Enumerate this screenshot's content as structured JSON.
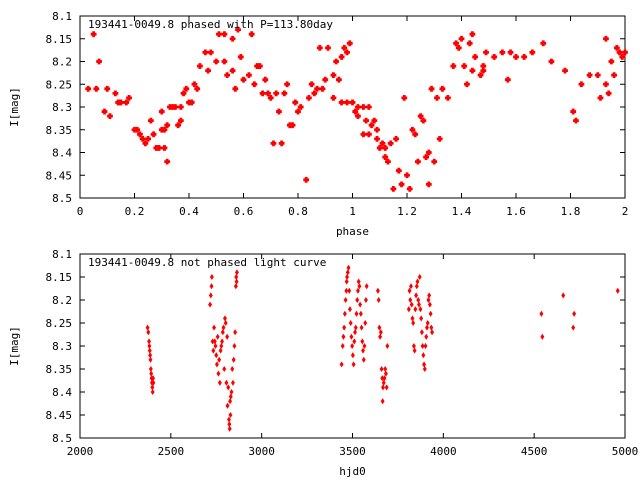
{
  "chart_data": [
    {
      "type": "scatter",
      "title": "193441-0049.8 phased with P=113.80day",
      "xlabel": "phase",
      "ylabel": "I[mag]",
      "xlim": [
        0,
        2
      ],
      "ylim": [
        8.1,
        8.5
      ],
      "y_inverted": true,
      "x_ticks": [
        "0",
        "0.2",
        "0.4",
        "0.6",
        "0.8",
        "1",
        "1.2",
        "1.4",
        "1.6",
        "1.8",
        "2"
      ],
      "y_ticks": [
        "8.1",
        "8.15",
        "8.2",
        "8.25",
        "8.3",
        "8.35",
        "8.4",
        "8.45",
        "8.5"
      ],
      "marker_color": "#ff0000",
      "points": [
        [
          0.03,
          8.26
        ],
        [
          0.05,
          8.14
        ],
        [
          0.06,
          8.26
        ],
        [
          0.07,
          8.2
        ],
        [
          0.09,
          8.31
        ],
        [
          0.1,
          8.26
        ],
        [
          0.11,
          8.32
        ],
        [
          0.13,
          8.27
        ],
        [
          0.14,
          8.29
        ],
        [
          0.15,
          8.29
        ],
        [
          0.17,
          8.29
        ],
        [
          0.18,
          8.28
        ],
        [
          0.2,
          8.35
        ],
        [
          0.21,
          8.35
        ],
        [
          0.22,
          8.36
        ],
        [
          0.23,
          8.37
        ],
        [
          0.24,
          8.38
        ],
        [
          0.25,
          8.37
        ],
        [
          0.26,
          8.33
        ],
        [
          0.27,
          8.36
        ],
        [
          0.28,
          8.39
        ],
        [
          0.29,
          8.39
        ],
        [
          0.3,
          8.35
        ],
        [
          0.3,
          8.31
        ],
        [
          0.31,
          8.39
        ],
        [
          0.31,
          8.35
        ],
        [
          0.32,
          8.34
        ],
        [
          0.32,
          8.42
        ],
        [
          0.33,
          8.3
        ],
        [
          0.34,
          8.3
        ],
        [
          0.35,
          8.3
        ],
        [
          0.36,
          8.34
        ],
        [
          0.37,
          8.3
        ],
        [
          0.37,
          8.33
        ],
        [
          0.38,
          8.27
        ],
        [
          0.39,
          8.26
        ],
        [
          0.4,
          8.29
        ],
        [
          0.41,
          8.29
        ],
        [
          0.42,
          8.25
        ],
        [
          0.43,
          8.26
        ],
        [
          0.44,
          8.21
        ],
        [
          0.46,
          8.18
        ],
        [
          0.47,
          8.22
        ],
        [
          0.48,
          8.18
        ],
        [
          0.5,
          8.2
        ],
        [
          0.51,
          8.14
        ],
        [
          0.53,
          8.14
        ],
        [
          0.53,
          8.2
        ],
        [
          0.54,
          8.23
        ],
        [
          0.56,
          8.15
        ],
        [
          0.56,
          8.22
        ],
        [
          0.57,
          8.26
        ],
        [
          0.58,
          8.13
        ],
        [
          0.59,
          8.19
        ],
        [
          0.6,
          8.24
        ],
        [
          0.62,
          8.23
        ],
        [
          0.63,
          8.14
        ],
        [
          0.64,
          8.25
        ],
        [
          0.65,
          8.21
        ],
        [
          0.66,
          8.21
        ],
        [
          0.67,
          8.27
        ],
        [
          0.68,
          8.24
        ],
        [
          0.69,
          8.27
        ],
        [
          0.7,
          8.28
        ],
        [
          0.71,
          8.38
        ],
        [
          0.72,
          8.27
        ],
        [
          0.73,
          8.31
        ],
        [
          0.74,
          8.38
        ],
        [
          0.75,
          8.27
        ],
        [
          0.76,
          8.25
        ],
        [
          0.77,
          8.34
        ],
        [
          0.78,
          8.34
        ],
        [
          0.79,
          8.29
        ],
        [
          0.8,
          8.31
        ],
        [
          0.81,
          8.3
        ],
        [
          0.83,
          8.46
        ],
        [
          0.84,
          8.28
        ],
        [
          0.85,
          8.25
        ],
        [
          0.86,
          8.27
        ],
        [
          0.87,
          8.26
        ],
        [
          0.88,
          8.17
        ],
        [
          0.89,
          8.26
        ],
        [
          0.9,
          8.24
        ],
        [
          0.91,
          8.17
        ],
        [
          0.93,
          8.28
        ],
        [
          0.93,
          8.23
        ],
        [
          0.94,
          8.2
        ],
        [
          0.95,
          8.24
        ],
        [
          0.96,
          8.19
        ],
        [
          0.96,
          8.29
        ],
        [
          0.97,
          8.17
        ],
        [
          0.98,
          8.29
        ],
        [
          0.98,
          8.18
        ],
        [
          0.99,
          8.16
        ],
        [
          1.0,
          8.29
        ],
        [
          1.01,
          8.31
        ],
        [
          1.02,
          8.32
        ],
        [
          1.02,
          8.3
        ],
        [
          1.04,
          8.3
        ],
        [
          1.04,
          8.36
        ],
        [
          1.05,
          8.33
        ],
        [
          1.06,
          8.3
        ],
        [
          1.06,
          8.36
        ],
        [
          1.07,
          8.34
        ],
        [
          1.08,
          8.33
        ],
        [
          1.09,
          8.35
        ],
        [
          1.09,
          8.37
        ],
        [
          1.1,
          8.39
        ],
        [
          1.11,
          8.38
        ],
        [
          1.12,
          8.39
        ],
        [
          1.12,
          8.41
        ],
        [
          1.13,
          8.42
        ],
        [
          1.14,
          8.38
        ],
        [
          1.15,
          8.48
        ],
        [
          1.16,
          8.37
        ],
        [
          1.17,
          8.44
        ],
        [
          1.18,
          8.47
        ],
        [
          1.19,
          8.28
        ],
        [
          1.2,
          8.45
        ],
        [
          1.21,
          8.48
        ],
        [
          1.22,
          8.35
        ],
        [
          1.23,
          8.36
        ],
        [
          1.24,
          8.42
        ],
        [
          1.25,
          8.32
        ],
        [
          1.26,
          8.33
        ],
        [
          1.27,
          8.41
        ],
        [
          1.28,
          8.4
        ],
        [
          1.28,
          8.47
        ],
        [
          1.29,
          8.26
        ],
        [
          1.3,
          8.42
        ],
        [
          1.31,
          8.28
        ],
        [
          1.32,
          8.37
        ],
        [
          1.33,
          8.26
        ],
        [
          1.35,
          8.28
        ],
        [
          1.37,
          8.21
        ],
        [
          1.38,
          8.16
        ],
        [
          1.39,
          8.17
        ],
        [
          1.4,
          8.15
        ],
        [
          1.41,
          8.21
        ],
        [
          1.42,
          8.25
        ],
        [
          1.43,
          8.16
        ],
        [
          1.44,
          8.14
        ],
        [
          1.44,
          8.22
        ],
        [
          1.45,
          8.19
        ],
        [
          1.47,
          8.23
        ],
        [
          1.48,
          8.22
        ],
        [
          1.48,
          8.21
        ],
        [
          1.49,
          8.18
        ],
        [
          1.52,
          8.19
        ],
        [
          1.55,
          8.18
        ],
        [
          1.57,
          8.24
        ],
        [
          1.58,
          8.18
        ],
        [
          1.6,
          8.19
        ],
        [
          1.63,
          8.19
        ],
        [
          1.66,
          8.18
        ],
        [
          1.7,
          8.16
        ],
        [
          1.73,
          8.2
        ],
        [
          1.78,
          8.22
        ],
        [
          1.81,
          8.31
        ],
        [
          1.82,
          8.33
        ],
        [
          1.84,
          8.25
        ],
        [
          1.87,
          8.23
        ],
        [
          1.9,
          8.23
        ],
        [
          1.91,
          8.28
        ],
        [
          1.93,
          8.15
        ],
        [
          1.93,
          8.25
        ],
        [
          1.94,
          8.27
        ],
        [
          1.95,
          8.2
        ],
        [
          1.96,
          8.23
        ],
        [
          1.97,
          8.17
        ],
        [
          1.98,
          8.18
        ],
        [
          1.99,
          8.19
        ],
        [
          2.0,
          8.18
        ]
      ]
    },
    {
      "type": "scatter",
      "title": "193441-0049.8 not phased light curve",
      "xlabel": "hjd0",
      "ylabel": "I[mag]",
      "xlim": [
        2000,
        5000
      ],
      "ylim": [
        8.1,
        8.5
      ],
      "y_inverted": true,
      "x_ticks": [
        "2000",
        "2500",
        "3000",
        "3500",
        "4000",
        "4500",
        "5000"
      ],
      "y_ticks": [
        "8.1",
        "8.15",
        "8.2",
        "8.25",
        "8.3",
        "8.35",
        "8.4",
        "8.45",
        "8.5"
      ],
      "marker_color": "#ff0000",
      "points": [
        [
          2372,
          8.26
        ],
        [
          2376,
          8.27
        ],
        [
          2380,
          8.29
        ],
        [
          2382,
          8.3
        ],
        [
          2384,
          8.31
        ],
        [
          2386,
          8.32
        ],
        [
          2388,
          8.33
        ],
        [
          2390,
          8.35
        ],
        [
          2392,
          8.36
        ],
        [
          2394,
          8.37
        ],
        [
          2396,
          8.38
        ],
        [
          2398,
          8.39
        ],
        [
          2400,
          8.4
        ],
        [
          2402,
          8.37
        ],
        [
          2404,
          8.38
        ],
        [
          2716,
          8.21
        ],
        [
          2720,
          8.19
        ],
        [
          2724,
          8.17
        ],
        [
          2726,
          8.15
        ],
        [
          2730,
          8.29
        ],
        [
          2734,
          8.31
        ],
        [
          2738,
          8.26
        ],
        [
          2742,
          8.29
        ],
        [
          2746,
          8.3
        ],
        [
          2750,
          8.32
        ],
        [
          2754,
          8.34
        ],
        [
          2758,
          8.28
        ],
        [
          2762,
          8.36
        ],
        [
          2766,
          8.33
        ],
        [
          2770,
          8.38
        ],
        [
          2774,
          8.31
        ],
        [
          2778,
          8.3
        ],
        [
          2782,
          8.29
        ],
        [
          2786,
          8.27
        ],
        [
          2790,
          8.26
        ],
        [
          2794,
          8.35
        ],
        [
          2798,
          8.24
        ],
        [
          2802,
          8.25
        ],
        [
          2806,
          8.38
        ],
        [
          2810,
          8.28
        ],
        [
          2812,
          8.43
        ],
        [
          2816,
          8.39
        ],
        [
          2820,
          8.46
        ],
        [
          2822,
          8.47
        ],
        [
          2824,
          8.48
        ],
        [
          2826,
          8.42
        ],
        [
          2828,
          8.45
        ],
        [
          2830,
          8.41
        ],
        [
          2834,
          8.4
        ],
        [
          2838,
          8.35
        ],
        [
          2842,
          8.38
        ],
        [
          2846,
          8.33
        ],
        [
          2850,
          8.3
        ],
        [
          2854,
          8.27
        ],
        [
          2858,
          8.17
        ],
        [
          2860,
          8.15
        ],
        [
          2862,
          8.16
        ],
        [
          2864,
          8.14
        ],
        [
          3440,
          8.34
        ],
        [
          3446,
          8.3
        ],
        [
          3450,
          8.28
        ],
        [
          3454,
          8.26
        ],
        [
          3458,
          8.23
        ],
        [
          3462,
          8.2
        ],
        [
          3466,
          8.18
        ],
        [
          3468,
          8.16
        ],
        [
          3470,
          8.15
        ],
        [
          3474,
          8.14
        ],
        [
          3478,
          8.13
        ],
        [
          3482,
          8.18
        ],
        [
          3486,
          8.22
        ],
        [
          3490,
          8.25
        ],
        [
          3494,
          8.28
        ],
        [
          3498,
          8.3
        ],
        [
          3502,
          8.32
        ],
        [
          3506,
          8.34
        ],
        [
          3510,
          8.29
        ],
        [
          3514,
          8.27
        ],
        [
          3518,
          8.26
        ],
        [
          3522,
          8.23
        ],
        [
          3526,
          8.2
        ],
        [
          3530,
          8.18
        ],
        [
          3534,
          8.16
        ],
        [
          3538,
          8.17
        ],
        [
          3542,
          8.21
        ],
        [
          3546,
          8.23
        ],
        [
          3550,
          8.26
        ],
        [
          3554,
          8.29
        ],
        [
          3558,
          8.31
        ],
        [
          3562,
          8.33
        ],
        [
          3566,
          8.3
        ],
        [
          3570,
          8.25
        ],
        [
          3574,
          8.2
        ],
        [
          3578,
          8.17
        ],
        [
          3640,
          8.18
        ],
        [
          3644,
          8.2
        ],
        [
          3648,
          8.26
        ],
        [
          3652,
          8.28
        ],
        [
          3656,
          8.27
        ],
        [
          3660,
          8.35
        ],
        [
          3664,
          8.37
        ],
        [
          3666,
          8.42
        ],
        [
          3668,
          8.39
        ],
        [
          3672,
          8.38
        ],
        [
          3676,
          8.37
        ],
        [
          3680,
          8.35
        ],
        [
          3684,
          8.36
        ],
        [
          3688,
          8.39
        ],
        [
          3692,
          8.3
        ],
        [
          3810,
          8.22
        ],
        [
          3814,
          8.18
        ],
        [
          3818,
          8.2
        ],
        [
          3822,
          8.17
        ],
        [
          3826,
          8.21
        ],
        [
          3830,
          8.24
        ],
        [
          3834,
          8.25
        ],
        [
          3838,
          8.3
        ],
        [
          3842,
          8.31
        ],
        [
          3846,
          8.22
        ],
        [
          3850,
          8.19
        ],
        [
          3854,
          8.17
        ],
        [
          3858,
          8.16
        ],
        [
          3862,
          8.2
        ],
        [
          3866,
          8.21
        ],
        [
          3870,
          8.15
        ],
        [
          3874,
          8.22
        ],
        [
          3878,
          8.24
        ],
        [
          3882,
          8.27
        ],
        [
          3886,
          8.3
        ],
        [
          3890,
          8.32
        ],
        [
          3894,
          8.34
        ],
        [
          3898,
          8.35
        ],
        [
          3902,
          8.3
        ],
        [
          3906,
          8.28
        ],
        [
          3910,
          8.26
        ],
        [
          3914,
          8.25
        ],
        [
          3918,
          8.2
        ],
        [
          3922,
          8.19
        ],
        [
          3926,
          8.21
        ],
        [
          3930,
          8.23
        ],
        [
          3934,
          8.26
        ],
        [
          3938,
          8.27
        ],
        [
          4540,
          8.23
        ],
        [
          4545,
          8.28
        ],
        [
          4660,
          8.19
        ],
        [
          4715,
          8.26
        ],
        [
          4720,
          8.23
        ],
        [
          4960,
          8.18
        ]
      ]
    }
  ]
}
